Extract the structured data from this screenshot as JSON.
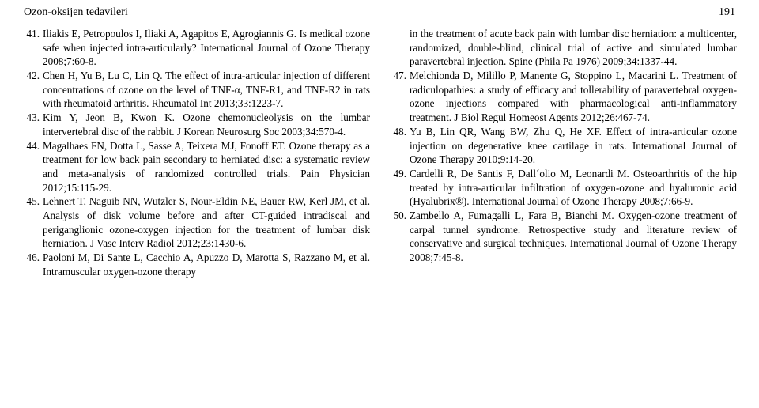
{
  "header": {
    "running_title": "Ozon-oksijen tedavileri",
    "page_number": "191"
  },
  "references_left": [
    {
      "num": "41.",
      "text": "Iliakis E, Petropoulos I, Iliaki A, Agapitos E, Agrogiannis G. Is medical ozone safe when injected intra-articularly? International Journal of Ozone Therapy 2008;7:60-8."
    },
    {
      "num": "42.",
      "text": "Chen H, Yu B, Lu C, Lin Q. The effect of intra-articular injection of different concentrations of ozone on the level of TNF-α, TNF-R1, and TNF-R2 in rats with rheumatoid arthritis. Rheumatol Int 2013;33:1223-7."
    },
    {
      "num": "43.",
      "text": "Kim Y, Jeon B, Kwon K. Ozone chemonucleolysis on the lumbar intervertebral disc of the rabbit. J Korean Neurosurg Soc 2003;34:570-4."
    },
    {
      "num": "44.",
      "text": "Magalhaes FN, Dotta L, Sasse A, Teixera MJ, Fonoff ET. Ozone therapy as a treatment for low back pain secondary to herniated disc: a systematic review and meta-analysis of randomized controlled trials. Pain Physician 2012;15:115-29."
    },
    {
      "num": "45.",
      "text": "Lehnert T, Naguib NN, Wutzler S, Nour-Eldin NE, Bauer RW, Kerl JM, et al. Analysis of disk volume before and after CT-guided intradiscal and periganglionic ozone-oxygen injection for the treatment of lumbar disk herniation. J Vasc Interv Radiol 2012;23:1430-6."
    },
    {
      "num": "46.",
      "text": "Paoloni M, Di Sante L, Cacchio A, Apuzzo D, Marotta S, Razzano M, et al. Intramuscular oxygen-ozone therapy"
    }
  ],
  "references_right": [
    {
      "num": "",
      "text": "in the treatment of acute back pain with lumbar disc herniation: a multicenter, randomized, double-blind, clinical trial of active and simulated lumbar paravertebral injection. Spine (Phila Pa 1976) 2009;34:1337-44."
    },
    {
      "num": "47.",
      "text": "Melchionda D, Milillo P, Manente G, Stoppino L, Macarini L. Treatment of radiculopathies: a study of efficacy and tollerability of paravertebral oxygen-ozone injections compared with pharmacological anti-inflammatory treatment. J Biol Regul Homeost Agents 2012;26:467-74."
    },
    {
      "num": "48.",
      "text": "Yu B, Lin QR, Wang BW, Zhu Q, He XF. Effect of intra-articular ozone injection on degenerative knee cartilage in rats. International Journal of Ozone Therapy 2010;9:14-20."
    },
    {
      "num": "49.",
      "text": "Cardelli R, De Santis F, Dall´olio M, Leonardi M. Osteoarthritis of the hip treated by intra-articular infiltration of oxygen-ozone and hyaluronic acid (Hyalubrix®). International Journal of Ozone Therapy 2008;7:66-9."
    },
    {
      "num": "50.",
      "text": "Zambello A, Fumagalli L, Fara B, Bianchi M. Oxygen-ozone treatment of carpal tunnel syndrome. Retrospective study and literature review of conservative and surgical techniques. International Journal of Ozone Therapy 2008;7:45-8."
    }
  ]
}
